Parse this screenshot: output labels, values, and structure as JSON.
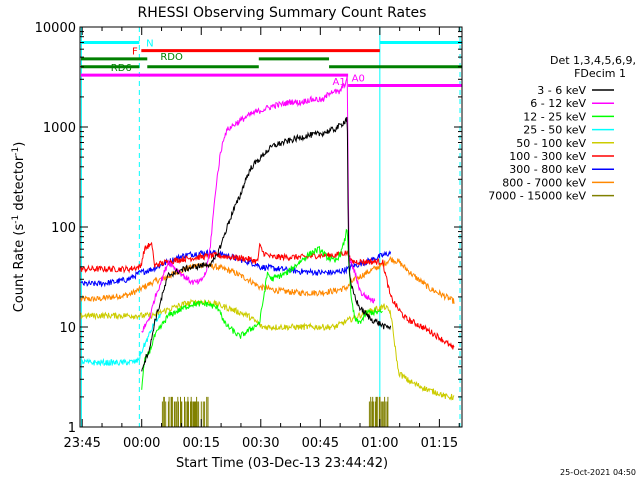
{
  "chart_data": {
    "type": "line",
    "title": "RHESSI Observing Summary Count Rates",
    "xlabel": "Start Time (03-Dec-13 23:44:42)",
    "ylabel": "Count Rate (s",
    "ylabel_sup1": "-1",
    "ylabel_mid": " detector",
    "ylabel_sup2": "-1",
    "ylabel_end": ")",
    "y_scale": "log",
    "ylim": [
      1,
      10000
    ],
    "xlim": [
      -0.25,
      96
    ],
    "x_unit": "minutes after 23:44:42",
    "x_ticks": [
      {
        "x": 0.3,
        "label": "23:45"
      },
      {
        "x": 15.3,
        "label": "00:00"
      },
      {
        "x": 30.3,
        "label": "00:15"
      },
      {
        "x": 45.3,
        "label": "00:30"
      },
      {
        "x": 60.3,
        "label": "00:45"
      },
      {
        "x": 75.3,
        "label": "01:00"
      },
      {
        "x": 90.3,
        "label": "01:15"
      }
    ],
    "y_ticks": [
      {
        "y": 1,
        "label": "1"
      },
      {
        "y": 10,
        "label": "10"
      },
      {
        "y": 100,
        "label": "100"
      },
      {
        "y": 1000,
        "label": "1000"
      },
      {
        "y": 10000,
        "label": "10000"
      }
    ],
    "legend": {
      "header1": "Det 1,3,4,5,6,9,",
      "header2": "FDecim 1",
      "position": "right"
    },
    "series": [
      {
        "name": "3 - 6 keV",
        "color": "#000000",
        "x": [
          15.3,
          16,
          17.5,
          18.5,
          22,
          26,
          30,
          33,
          34,
          35.5,
          37,
          38.5,
          40,
          41.5,
          43,
          45,
          46.5,
          48.5,
          51,
          54,
          57,
          60,
          62,
          64,
          65.5,
          66.5,
          67.1,
          67.3,
          67.5,
          68,
          70,
          73,
          75,
          76.5,
          78
        ],
        "y": [
          3.8,
          4.5,
          6.5,
          11,
          33,
          38,
          41,
          43,
          50,
          70,
          105,
          150,
          200,
          300,
          400,
          480,
          560,
          650,
          700,
          760,
          820,
          850,
          900,
          950,
          1050,
          1150,
          1250,
          160,
          40,
          26,
          16,
          12,
          11,
          10,
          10
        ]
      },
      {
        "name": "6 - 12 keV",
        "color": "#ff00ff",
        "x": [
          15.3,
          16,
          17.5,
          18.5,
          22,
          24,
          26,
          28,
          30,
          31.5,
          32.5,
          34,
          35,
          36,
          37,
          38.5,
          40,
          41.5,
          43,
          45,
          47,
          49,
          51,
          53,
          55,
          57,
          59,
          61,
          63,
          65,
          66.5,
          67.1,
          67.3,
          67.5,
          69,
          70.5,
          72,
          74
        ],
        "y": [
          9,
          10,
          13,
          19,
          45,
          38,
          32,
          28,
          28,
          35,
          60,
          250,
          500,
          800,
          950,
          1050,
          1150,
          1250,
          1350,
          1450,
          1550,
          1650,
          1700,
          1800,
          1750,
          1850,
          1900,
          1850,
          2300,
          2200,
          2700,
          3100,
          420,
          50,
          35,
          22,
          20,
          18
        ]
      },
      {
        "name": "12 - 25 keV",
        "color": "#00ff00",
        "x": [
          15.3,
          16,
          17.5,
          18.5,
          22,
          28,
          32,
          35,
          36,
          40,
          45,
          47,
          48,
          52,
          56,
          58,
          60,
          62,
          64,
          65.5,
          66.5,
          67.1,
          67.3,
          68,
          69,
          70,
          71,
          72,
          74,
          76
        ],
        "y": [
          2.5,
          4.5,
          6,
          8,
          13,
          17,
          17,
          15,
          11,
          8,
          11,
          35,
          30,
          35,
          48,
          55,
          60,
          50,
          45,
          55,
          75,
          100,
          60,
          20,
          12,
          11,
          12,
          14,
          14,
          14
        ]
      },
      {
        "name": "25 - 50 keV",
        "color": "#00ffff",
        "x": [
          0,
          2,
          6,
          10,
          14,
          14.8,
          15.5,
          17,
          18.5,
          20
        ],
        "y": [
          4.5,
          4.4,
          4.4,
          4.4,
          4.5,
          5,
          6,
          8,
          11,
          13
        ]
      },
      {
        "name": "50 - 100 keV",
        "color": "#cccc00",
        "x": [
          0,
          4,
          8,
          12,
          15,
          18,
          22,
          26,
          30,
          34,
          38,
          42,
          44.5,
          45.5,
          50,
          55,
          60,
          64,
          66,
          70,
          74,
          76.5,
          78,
          80,
          82,
          84,
          86,
          88,
          90,
          92,
          94
        ],
        "y": [
          13,
          13,
          13,
          13,
          13,
          13,
          15,
          17,
          18,
          17,
          15,
          13,
          11,
          10,
          10,
          10,
          10,
          10,
          11,
          13,
          15,
          16,
          14,
          3.5,
          3.0,
          2.7,
          2.5,
          2.3,
          2.2,
          2.0,
          2.0
        ]
      },
      {
        "name": "100 - 300 keV",
        "color": "#ff0000",
        "x": [
          0,
          4,
          8,
          12,
          15,
          16,
          17,
          18,
          18.5,
          19,
          22,
          26,
          30,
          34,
          38,
          42,
          44.5,
          45,
          46,
          48,
          52,
          56,
          60,
          64,
          66,
          67.3,
          68,
          72,
          76,
          78,
          80,
          82,
          84,
          86,
          88,
          90,
          92,
          94
        ],
        "y": [
          38,
          38,
          38,
          38,
          40,
          60,
          65,
          65,
          40,
          42,
          45,
          48,
          50,
          52,
          50,
          48,
          45,
          65,
          55,
          50,
          50,
          50,
          52,
          52,
          55,
          55,
          45,
          45,
          45,
          20,
          15,
          12,
          11,
          10,
          9,
          8,
          7,
          6
        ]
      },
      {
        "name": "300 - 800 keV",
        "color": "#0000ff",
        "x": [
          0,
          4,
          8,
          12,
          15,
          18,
          22,
          26,
          30,
          34,
          38,
          42,
          44.5,
          45,
          50,
          55,
          60,
          64,
          67.3,
          68,
          72,
          76,
          78
        ],
        "y": [
          27,
          27,
          28,
          30,
          35,
          38,
          45,
          52,
          55,
          55,
          50,
          45,
          42,
          40,
          38,
          36,
          35,
          35,
          38,
          40,
          45,
          52,
          55
        ]
      },
      {
        "name": "800 - 7000 keV",
        "color": "#ff8800",
        "x": [
          0,
          4,
          8,
          12,
          15,
          18,
          22,
          26,
          30,
          34,
          38,
          42,
          44.5,
          45,
          50,
          55,
          60,
          64,
          67.3,
          68,
          72,
          76,
          78,
          80,
          82,
          84,
          86,
          88,
          90,
          92,
          94
        ],
        "y": [
          19,
          19,
          20,
          21,
          24,
          28,
          32,
          38,
          42,
          40,
          36,
          30,
          26,
          25,
          23,
          22,
          22,
          23,
          25,
          28,
          35,
          42,
          48,
          45,
          38,
          32,
          28,
          24,
          22,
          20,
          18
        ]
      }
    ],
    "noise_series": {
      "name": "7000 - 15000 keV",
      "color": "#808000",
      "segments": [
        [
          20.5,
          32
        ],
        [
          72.5,
          77.5
        ]
      ],
      "y_range": [
        1,
        2
      ]
    },
    "flag_bars": [
      {
        "label": "N",
        "color": "#00ffff",
        "y": 7000,
        "segments": [
          [
            0,
            14.7
          ],
          [
            75.3,
            96
          ]
        ]
      },
      {
        "label": "F",
        "color": "#ff0000",
        "y": 5800,
        "segments": [
          [
            15.2,
            75.3
          ]
        ]
      },
      {
        "label": "RDO",
        "color": "#008000",
        "y": 4800,
        "segments": [
          [
            0,
            16.7
          ],
          [
            44.8,
            62.5
          ]
        ]
      },
      {
        "label": "RD6",
        "color": "#008000",
        "y": 4000,
        "segments": [
          [
            0,
            14.7
          ],
          [
            16.7,
            44.8
          ],
          [
            62.5,
            96
          ]
        ]
      },
      {
        "label": "A1",
        "color": "#ff00ff",
        "y": 3300,
        "segments": [
          [
            0,
            67.3
          ]
        ]
      },
      {
        "label": "A0",
        "color": "#ff00ff",
        "y": 2600,
        "segments": [
          [
            67.3,
            96
          ]
        ]
      }
    ],
    "vlines": [
      {
        "x": 0.1,
        "color": "#00ffff",
        "style": "solid"
      },
      {
        "x": 14.7,
        "color": "#00ffff",
        "style": "dashed"
      },
      {
        "x": 75.3,
        "color": "#00ffff",
        "style": "solid"
      },
      {
        "x": 95.5,
        "color": "#00ffff",
        "style": "dashed"
      }
    ],
    "footer": "25-Oct-2021 04:50"
  }
}
